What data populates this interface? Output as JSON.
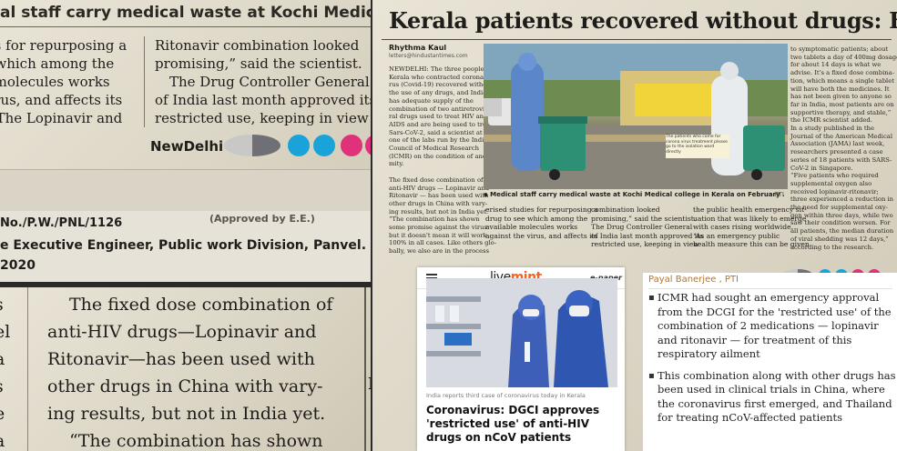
{
  "panel_top_left": {
    "header": "al staff carry medical waste at Kochi Medical college in Kerala o",
    "col1": [
      "ies for repurposing a",
      "g which among the",
      "e molecules works",
      "virus, and affects its",
      "t. The Lopinavir and"
    ],
    "col2": [
      "Ritonavir combination looked",
      "promising,” said the scientist.",
      "The Drug Controller General",
      "of India last month approved its",
      "restricted use, keeping in view"
    ],
    "city": "NewDelhi",
    "ad": {
      "line1": "No./P.W./PNL/1126",
      "line1b": "(Approved by E.E.)",
      "line2": "e Executive Engineer, Public work Division, Panvel.",
      "line3": "2020"
    }
  },
  "panel_bottom_left": {
    "col1": [
      "s",
      "el",
      "a",
      "s",
      "e",
      "a"
    ],
    "col2": [
      "The fixed dose combination of",
      "anti-HIV drugs—Lopinavir and",
      "Ritonavir—has been used with",
      "other drugs in China with vary-",
      "ing results, but not in India yet.",
      "“The combination has shown"
    ],
    "right_mark": "M"
  },
  "panel_newspaper": {
    "headline": "Kerala patients recovered without drugs: Expert",
    "byline": "Rhythma Kaul",
    "email": "letters@hindustantimes.com",
    "left_col": [
      "NEWDELHI: The three people from",
      "Kerala who contracted coronavi-",
      "rus (Covid-19) recovered without",
      "the use of any drugs, and India",
      "has adequate supply of the",
      "combination of two antiretrovi-",
      "ral drugs used to treat HIV and",
      "AIDS and are being used to treat",
      "Sars-CoV-2, said a scientist at",
      "one of the labs run by the Indian",
      "Council of Medical Research",
      "(ICMR) on the condition of anony-",
      "mity.",
      "",
      "The fixed dose combination of",
      "anti-HIV drugs — Lopinavir and",
      "Ritonavir — has been used with",
      "other drugs in China with vary-",
      "ing results, but not in India yet.",
      "“The combination has shown",
      "some promise against the virus",
      "but it doesn't mean it will work",
      "100% in all cases. Like others glo-",
      "bally, we also are in the process"
    ],
    "right_col": [
      "to symptomatic patients; about",
      "two tablets a day of 400mg dosage",
      "for about 14 days is what we",
      "advise. It's a fixed dose combina-",
      "tion, which means a single tablet",
      "will have both the medicines. It",
      "has not been given to anyone so",
      "far in India, most patients are on",
      "supportive therapy, and stable,”",
      "the ICMR scientist added.",
      "In a study published in the",
      "Journal of the American Medical",
      "Association (JAMA) last week,",
      "researchers presented a case",
      "series of 18 patients with SARS-",
      "CoV-2 in Singapore.",
      "“Five patients who required",
      "supplemental oxygen also",
      "received lopinavir-ritonavir;",
      "three experienced a reduction in",
      "the need for supplemental oxy-",
      "gen within three days, while two",
      "saw their condition worsen. For",
      "all patients, the median duration",
      "of viral shedding was 12 days,”",
      "according to the research."
    ],
    "photo_sign": "The patients who come for corona virus treatment please go to the isolation ward directly",
    "caption": "▪ Medical staff carry medical waste at Kochi Medical college in Kerala on February .",
    "caption_credit": "PTI",
    "bottom_col1": [
      "erised studies for repurposing a",
      "drug to see which among the",
      "available molecules works",
      "against the virus, and affects its"
    ],
    "bottom_col2": [
      "combination looked",
      "promising,” said the scientist.",
      "The Drug Controller General",
      "of India last month approved its",
      "restricted use, keeping in view"
    ],
    "bottom_col3": [
      "the public health emergency sit-",
      "uation that was likely to emerge",
      "with cases rising worldwide.",
      "“As an emergency public",
      "health measure this can be given"
    ]
  },
  "livemint": {
    "logo_live": "live",
    "logo_mint": "mint",
    "epaper": "e-paper",
    "kicker": "India reports third case of coronavirus today in Kerala",
    "title": "Coronavirus: DGCI approves 'restricted use' of anti-HIV drugs on nCoV patients"
  },
  "pti_panel": {
    "author": "Payal Banerjee , PTI",
    "bullets": [
      "ICMR had sought an emergency approval from the DCGI for the 'restricted use' of the combination of 2 medications — lopinavir and ritonavir — for treatment of this respiratory ailment",
      "This combination along with other drugs has been used in clinical trials in China, where the coronavirus first emerged, and Thailand for treating nCoV-affected patients"
    ]
  },
  "colors": {
    "mint_orange": "#f26522",
    "pti_author": "#b5762a",
    "cyan": "#1aa3d8",
    "magenta": "#e0327a",
    "gray_ink": "#8b8c90"
  }
}
